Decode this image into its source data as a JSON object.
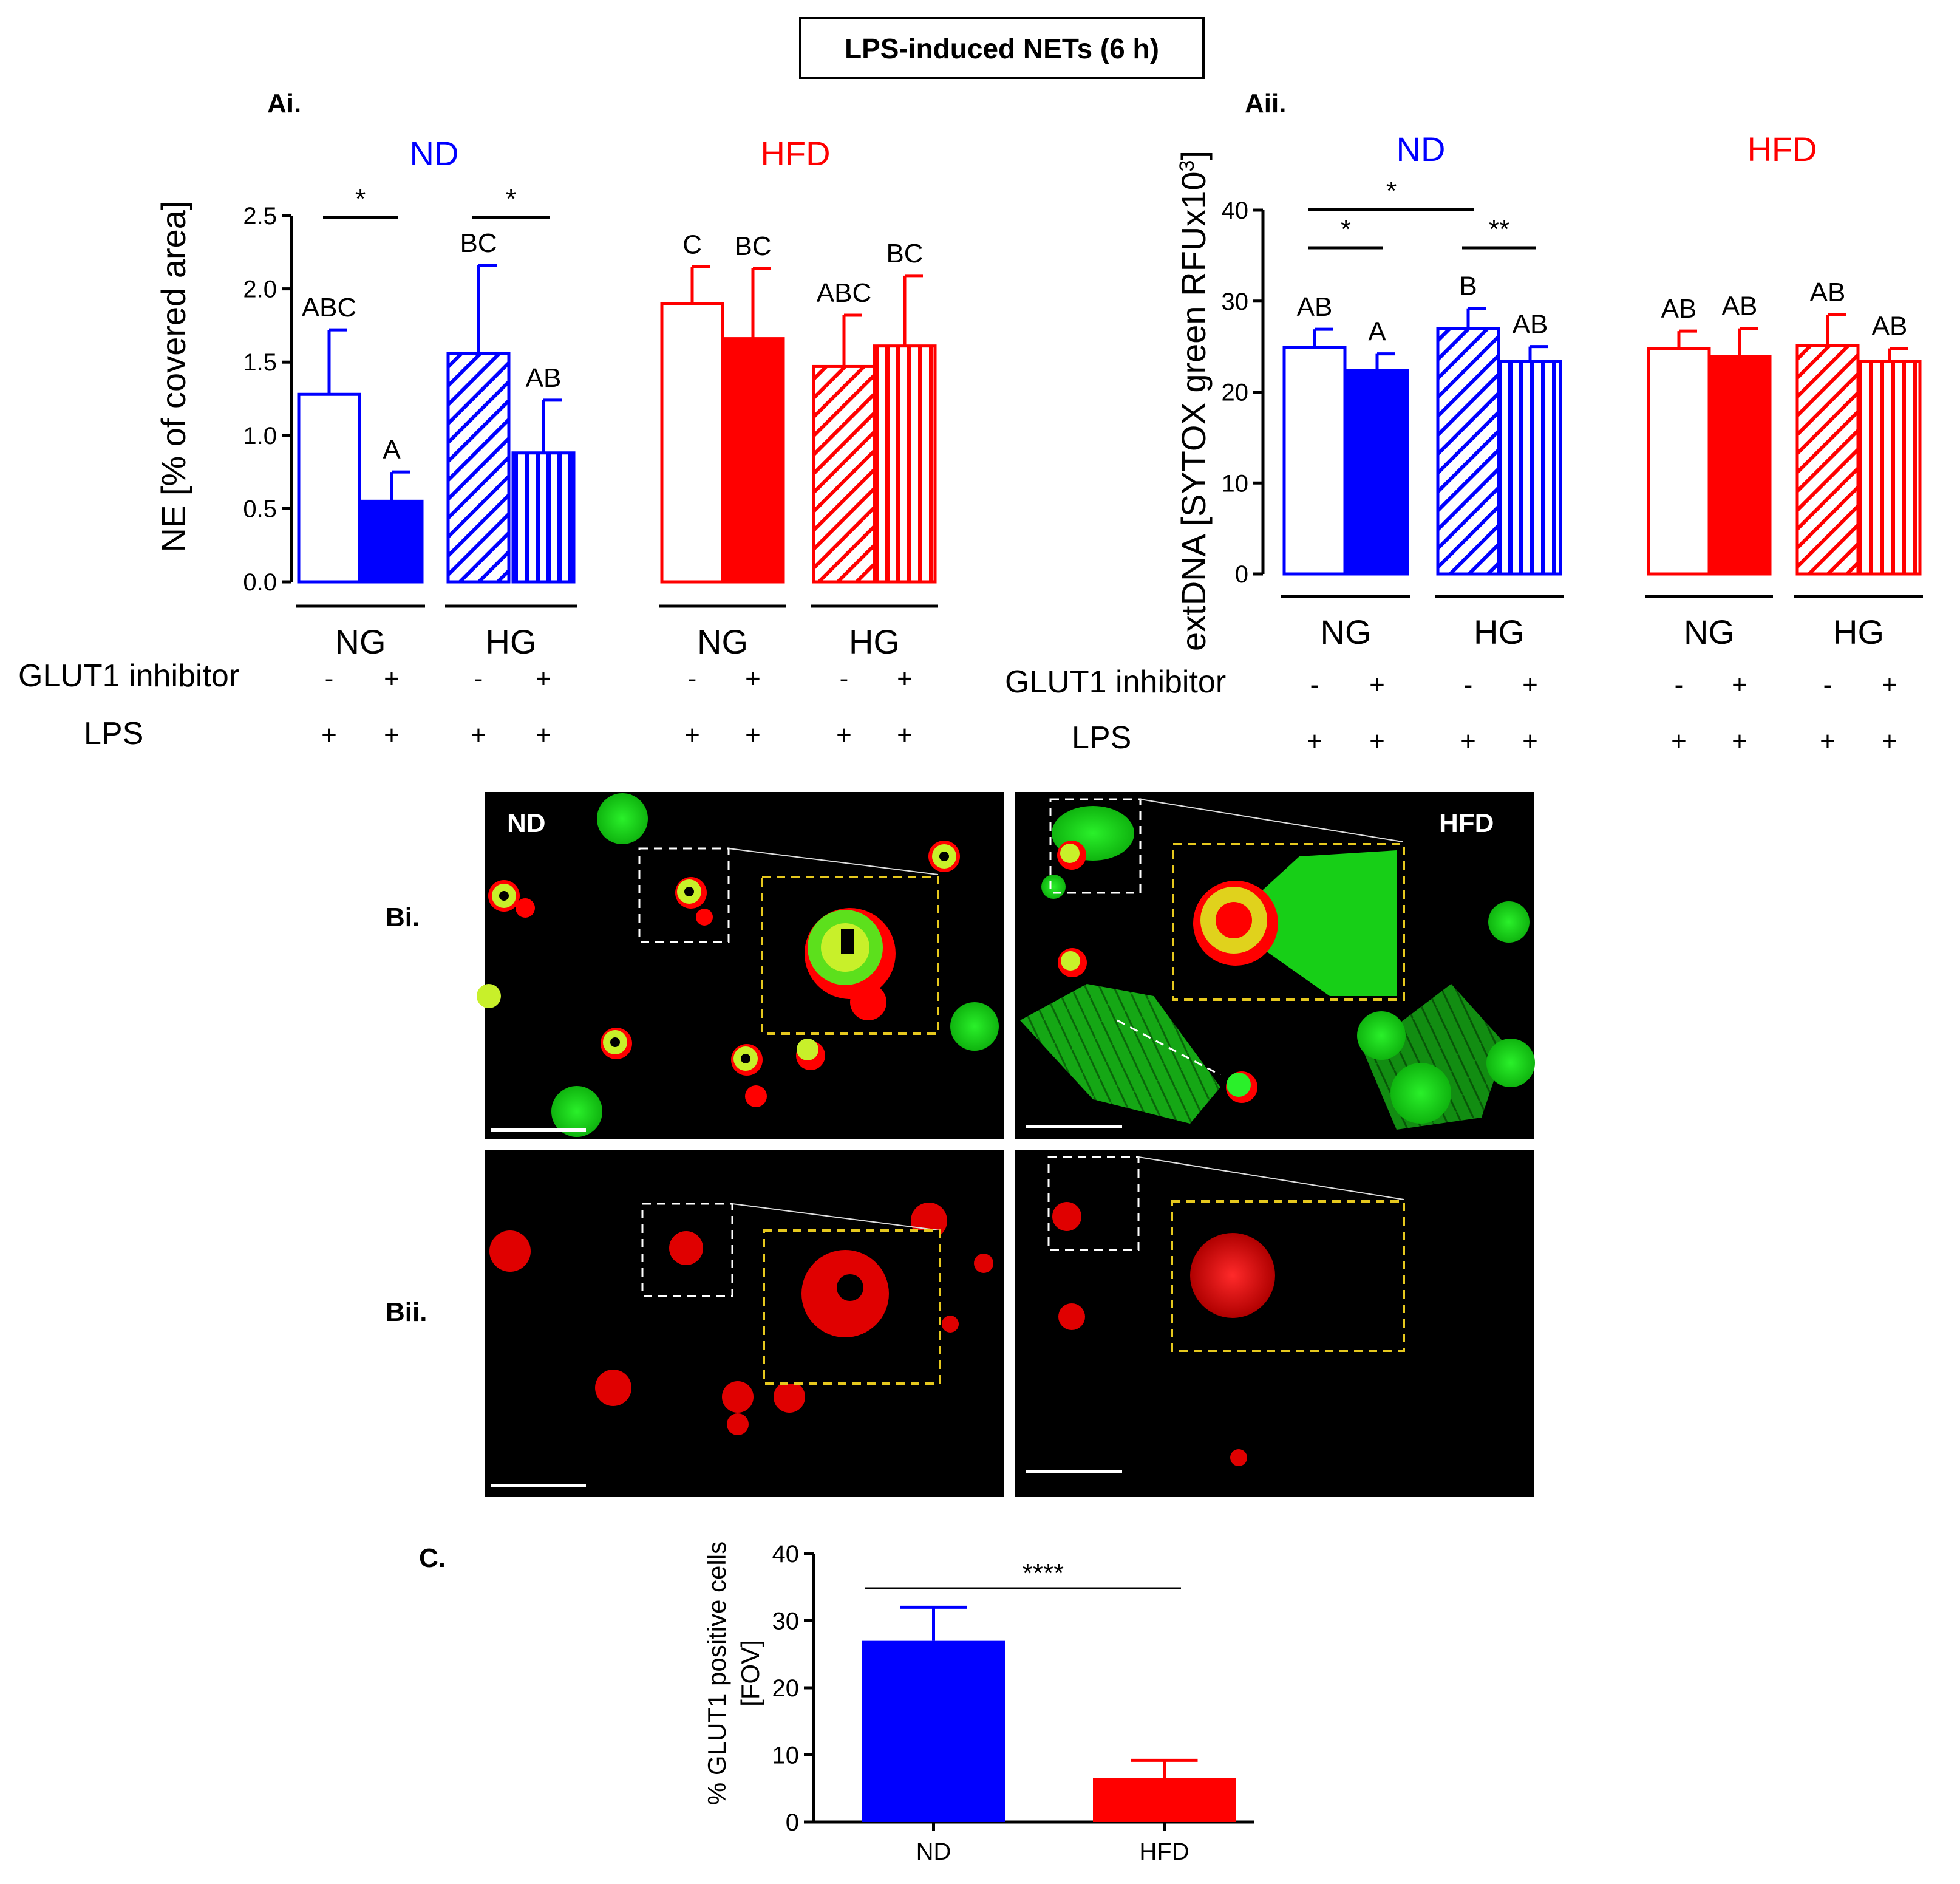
{
  "colors": {
    "nd": "#0000FF",
    "hfd": "#FF0000",
    "green": "#19E619",
    "nuc": "#C8F02A",
    "yellow": "#E6C81E"
  },
  "title": "LPS-induced NETs (6 h)",
  "row_labels": {
    "glut1": "GLUT1 inhibitor",
    "lps": "LPS"
  },
  "group_labels": {
    "nd": "ND",
    "hfd": "HFD",
    "ng": "NG",
    "hg": "HG"
  },
  "conditions": {
    "glut1_signs": [
      "-",
      "+",
      "-",
      "+",
      "-",
      "+",
      "-",
      "+"
    ],
    "lps_signs": [
      "+",
      "+",
      "+",
      "+",
      "+",
      "+",
      "+",
      "+"
    ]
  },
  "chart_data": [
    {
      "panel": "Ai.",
      "type": "bar",
      "ylabel": "NE [% of covered area]",
      "ylim": [
        0,
        2.5
      ],
      "yticks": [
        "0.0",
        "0.5",
        "1.0",
        "1.5",
        "2.0",
        "2.5"
      ],
      "categories": [
        "ND NG -",
        "ND NG +",
        "ND HG -",
        "ND HG +",
        "HFD NG -",
        "HFD NG +",
        "HFD HG -",
        "HFD HG +"
      ],
      "values": [
        1.28,
        0.55,
        1.56,
        0.88,
        1.9,
        1.66,
        1.47,
        1.61
      ],
      "errors": [
        0.44,
        0.2,
        0.6,
        0.36,
        0.25,
        0.48,
        0.35,
        0.48
      ],
      "letters": [
        "ABC",
        "A",
        "BC",
        "AB",
        "C",
        "BC",
        "ABC",
        "BC"
      ],
      "significance": [
        {
          "from": 0,
          "to": 1,
          "label": "*"
        },
        {
          "from": 2,
          "to": 3,
          "label": "*"
        }
      ]
    },
    {
      "panel": "Aii.",
      "type": "bar",
      "ylabel": "extDNA [SYTOX green RFUx10",
      "ylabel_sup": "3",
      "ylabel_end": "]",
      "ylim": [
        0,
        40
      ],
      "yticks": [
        "0",
        "10",
        "20",
        "30",
        "40"
      ],
      "categories": [
        "ND NG -",
        "ND NG +",
        "ND HG -",
        "ND HG +",
        "HFD NG -",
        "HFD NG +",
        "HFD HG -",
        "HFD HG +"
      ],
      "values": [
        24.9,
        22.4,
        27.0,
        23.4,
        24.8,
        23.9,
        25.1,
        23.4
      ],
      "errors": [
        2.0,
        1.8,
        2.2,
        1.6,
        1.9,
        3.1,
        3.4,
        1.4
      ],
      "letters": [
        "AB",
        "A",
        "B",
        "AB",
        "AB",
        "AB",
        "AB",
        "AB"
      ],
      "significance": [
        {
          "from": 0,
          "to": 2,
          "label": "*"
        },
        {
          "from": 0,
          "to": 1,
          "label": "*"
        },
        {
          "from": 2,
          "to": 3,
          "label": "**"
        }
      ]
    },
    {
      "panel": "C.",
      "type": "bar",
      "ylabel_line1": "% GLUT1 positive cells",
      "ylabel_line2": "[FOV]",
      "ylim": [
        0,
        40
      ],
      "yticks": [
        "0",
        "10",
        "20",
        "30",
        "40"
      ],
      "categories": [
        "ND",
        "HFD"
      ],
      "values": [
        27.0,
        6.6
      ],
      "errors": [
        5.0,
        2.6
      ],
      "significance": [
        {
          "from": 0,
          "to": 1,
          "label": "****"
        }
      ]
    }
  ],
  "images": {
    "panel_bi": "Bi.",
    "panel_bii": "Bii.",
    "nd_label": "ND",
    "hfd_label": "HFD"
  }
}
